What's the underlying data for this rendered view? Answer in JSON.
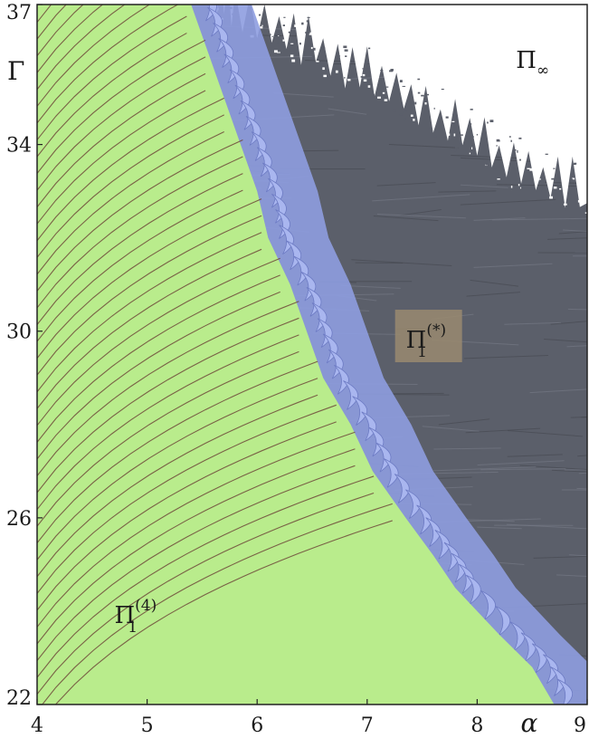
{
  "chart_data": {
    "type": "heatmap",
    "title": "",
    "xlabel": "α",
    "ylabel": "Γ",
    "xlim": [
      4,
      9
    ],
    "ylim": [
      22,
      37
    ],
    "x_ticks": [
      "4",
      "5",
      "6",
      "7",
      "8",
      "9"
    ],
    "y_ticks": [
      "22",
      "26",
      "30",
      "34",
      "37"
    ],
    "grid": false,
    "regions": [
      {
        "symbol": "Π",
        "sub": "1",
        "sup": "(4)",
        "label_at": [
          4.9,
          23.9
        ],
        "color": "#b9ec8c",
        "description": "green"
      },
      {
        "symbol": "Π",
        "sub": "1",
        "sup": "(*)",
        "label_at": [
          7.55,
          29.8
        ],
        "color": "#5b5f6a",
        "description": "dark"
      },
      {
        "symbol": "Π",
        "sub": "∞",
        "sup": "",
        "label_at": [
          8.55,
          35.8
        ],
        "color": "#ffffff",
        "description": "white"
      }
    ],
    "boundary_green_right": [
      [
        5.4,
        37
      ],
      [
        5.55,
        36
      ],
      [
        5.7,
        35
      ],
      [
        5.85,
        34
      ],
      [
        6.0,
        33
      ],
      [
        6.1,
        32
      ],
      [
        6.3,
        31
      ],
      [
        6.45,
        30
      ],
      [
        6.6,
        29
      ],
      [
        6.85,
        28
      ],
      [
        7.05,
        27
      ],
      [
        7.35,
        26
      ],
      [
        7.6,
        25.2
      ],
      [
        7.8,
        24.5
      ],
      [
        8.2,
        23.5
      ],
      [
        8.5,
        22.8
      ],
      [
        8.7,
        22
      ]
    ],
    "boundary_white_lower": [
      [
        5.6,
        37
      ],
      [
        5.8,
        36.8
      ],
      [
        6.2,
        36.3
      ],
      [
        6.6,
        35.8
      ],
      [
        7.0,
        35.3
      ],
      [
        7.4,
        34.8
      ],
      [
        7.8,
        34.2
      ],
      [
        8.2,
        33.6
      ],
      [
        8.6,
        33.1
      ],
      [
        9.0,
        32.8
      ]
    ],
    "fringe_color": "#8e9de0",
    "curve_color": "#6e4a3a"
  }
}
